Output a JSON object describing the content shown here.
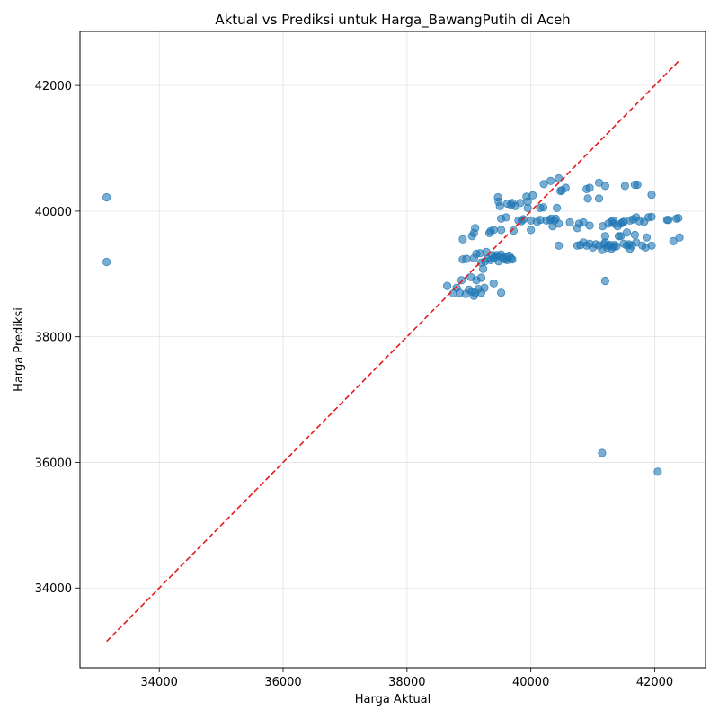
{
  "chart_data": {
    "type": "scatter",
    "title": "Aktual vs Prediksi untuk Harga_BawangPutih di Aceh",
    "xlabel": "Harga Aktual",
    "ylabel": "Harga Prediksi",
    "xlim": [
      32720,
      42820
    ],
    "ylim": [
      32730,
      42860
    ],
    "xticks": [
      34000,
      36000,
      38000,
      40000,
      42000
    ],
    "yticks": [
      34000,
      36000,
      38000,
      40000,
      42000
    ],
    "grid": true,
    "point_color": "#1f77b4",
    "reference_line": {
      "x": [
        33150,
        42400
      ],
      "y": [
        33150,
        42400
      ],
      "color": "#e41a1c",
      "style": "dashed"
    },
    "points": [
      [
        33150,
        40220
      ],
      [
        33150,
        39190
      ],
      [
        38650,
        38810
      ],
      [
        38750,
        38690
      ],
      [
        38800,
        38780
      ],
      [
        38850,
        38700
      ],
      [
        38880,
        38900
      ],
      [
        38950,
        38680
      ],
      [
        39000,
        38750
      ],
      [
        39050,
        38720
      ],
      [
        39080,
        38650
      ],
      [
        39100,
        38700
      ],
      [
        39150,
        38760
      ],
      [
        39200,
        38700
      ],
      [
        39250,
        38780
      ],
      [
        39030,
        38950
      ],
      [
        39120,
        38900
      ],
      [
        39400,
        38850
      ],
      [
        39520,
        38700
      ],
      [
        39200,
        38940
      ],
      [
        38900,
        39230
      ],
      [
        38960,
        39240
      ],
      [
        39080,
        39250
      ],
      [
        39120,
        39320
      ],
      [
        39180,
        39330
      ],
      [
        39200,
        39180
      ],
      [
        39230,
        39080
      ],
      [
        39260,
        39200
      ],
      [
        39280,
        39350
      ],
      [
        39300,
        39240
      ],
      [
        39350,
        39220
      ],
      [
        39380,
        39300
      ],
      [
        39400,
        39250
      ],
      [
        39420,
        39270
      ],
      [
        39450,
        39300
      ],
      [
        39480,
        39200
      ],
      [
        39500,
        39280
      ],
      [
        39520,
        39310
      ],
      [
        39550,
        39250
      ],
      [
        39580,
        39230
      ],
      [
        39600,
        39270
      ],
      [
        39620,
        39220
      ],
      [
        39650,
        39290
      ],
      [
        39680,
        39250
      ],
      [
        39700,
        39230
      ],
      [
        38900,
        39550
      ],
      [
        39050,
        39600
      ],
      [
        39080,
        39650
      ],
      [
        39100,
        39730
      ],
      [
        39330,
        39650
      ],
      [
        39350,
        39680
      ],
      [
        39400,
        39700
      ],
      [
        39520,
        39700
      ],
      [
        39720,
        39690
      ],
      [
        39470,
        40220
      ],
      [
        39480,
        40150
      ],
      [
        39500,
        40080
      ],
      [
        39520,
        39880
      ],
      [
        39600,
        39900
      ],
      [
        39620,
        40120
      ],
      [
        39680,
        40100
      ],
      [
        39700,
        40130
      ],
      [
        39750,
        40080
      ],
      [
        39830,
        40130
      ],
      [
        39800,
        39850
      ],
      [
        39850,
        39840
      ],
      [
        39880,
        39870
      ],
      [
        39930,
        40230
      ],
      [
        39950,
        40150
      ],
      [
        39950,
        40050
      ],
      [
        40000,
        39700
      ],
      [
        40000,
        39850
      ],
      [
        40030,
        40250
      ],
      [
        40100,
        39830
      ],
      [
        40150,
        39860
      ],
      [
        40150,
        40050
      ],
      [
        40200,
        40060
      ],
      [
        40210,
        40430
      ],
      [
        40250,
        39850
      ],
      [
        40300,
        39860
      ],
      [
        40320,
        40480
      ],
      [
        40330,
        39880
      ],
      [
        40350,
        39760
      ],
      [
        40380,
        39850
      ],
      [
        40400,
        39880
      ],
      [
        40420,
        40050
      ],
      [
        40450,
        40520
      ],
      [
        40450,
        39800
      ],
      [
        40480,
        40320
      ],
      [
        40500,
        40330
      ],
      [
        40560,
        40370
      ],
      [
        40450,
        39450
      ],
      [
        40630,
        39820
      ],
      [
        40750,
        39730
      ],
      [
        40780,
        39800
      ],
      [
        40850,
        39820
      ],
      [
        40900,
        40350
      ],
      [
        40920,
        40200
      ],
      [
        40950,
        40370
      ],
      [
        40950,
        39770
      ],
      [
        41100,
        40450
      ],
      [
        41100,
        40200
      ],
      [
        41160,
        39760
      ],
      [
        41200,
        40400
      ],
      [
        41250,
        39800
      ],
      [
        41300,
        39830
      ],
      [
        41330,
        39850
      ],
      [
        41350,
        39800
      ],
      [
        41400,
        39760
      ],
      [
        41450,
        39800
      ],
      [
        41480,
        39820
      ],
      [
        41500,
        39830
      ],
      [
        41520,
        40400
      ],
      [
        41550,
        39660
      ],
      [
        41600,
        39850
      ],
      [
        41650,
        39870
      ],
      [
        41680,
        40420
      ],
      [
        41700,
        39900
      ],
      [
        41720,
        40420
      ],
      [
        41750,
        39840
      ],
      [
        41830,
        39830
      ],
      [
        41870,
        39580
      ],
      [
        41900,
        39900
      ],
      [
        41950,
        40260
      ],
      [
        41950,
        39910
      ],
      [
        42200,
        39860
      ],
      [
        42220,
        39860
      ],
      [
        42350,
        39880
      ],
      [
        42380,
        39890
      ],
      [
        40750,
        39450
      ],
      [
        40800,
        39460
      ],
      [
        40850,
        39500
      ],
      [
        40900,
        39450
      ],
      [
        40950,
        39480
      ],
      [
        41000,
        39420
      ],
      [
        41050,
        39470
      ],
      [
        41100,
        39450
      ],
      [
        41150,
        39380
      ],
      [
        41180,
        39470
      ],
      [
        41200,
        39500
      ],
      [
        41230,
        39420
      ],
      [
        41250,
        39450
      ],
      [
        41280,
        39460
      ],
      [
        41300,
        39400
      ],
      [
        41330,
        39430
      ],
      [
        41350,
        39460
      ],
      [
        41380,
        39440
      ],
      [
        41420,
        39600
      ],
      [
        41450,
        39600
      ],
      [
        41500,
        39480
      ],
      [
        41550,
        39450
      ],
      [
        41580,
        39470
      ],
      [
        41600,
        39400
      ],
      [
        41630,
        39450
      ],
      [
        41680,
        39620
      ],
      [
        41700,
        39500
      ],
      [
        41800,
        39450
      ],
      [
        41850,
        39420
      ],
      [
        41950,
        39450
      ],
      [
        42300,
        39520
      ],
      [
        42400,
        39580
      ],
      [
        41200,
        39600
      ],
      [
        41150,
        36150
      ],
      [
        41200,
        38890
      ],
      [
        42050,
        35850
      ]
    ]
  }
}
